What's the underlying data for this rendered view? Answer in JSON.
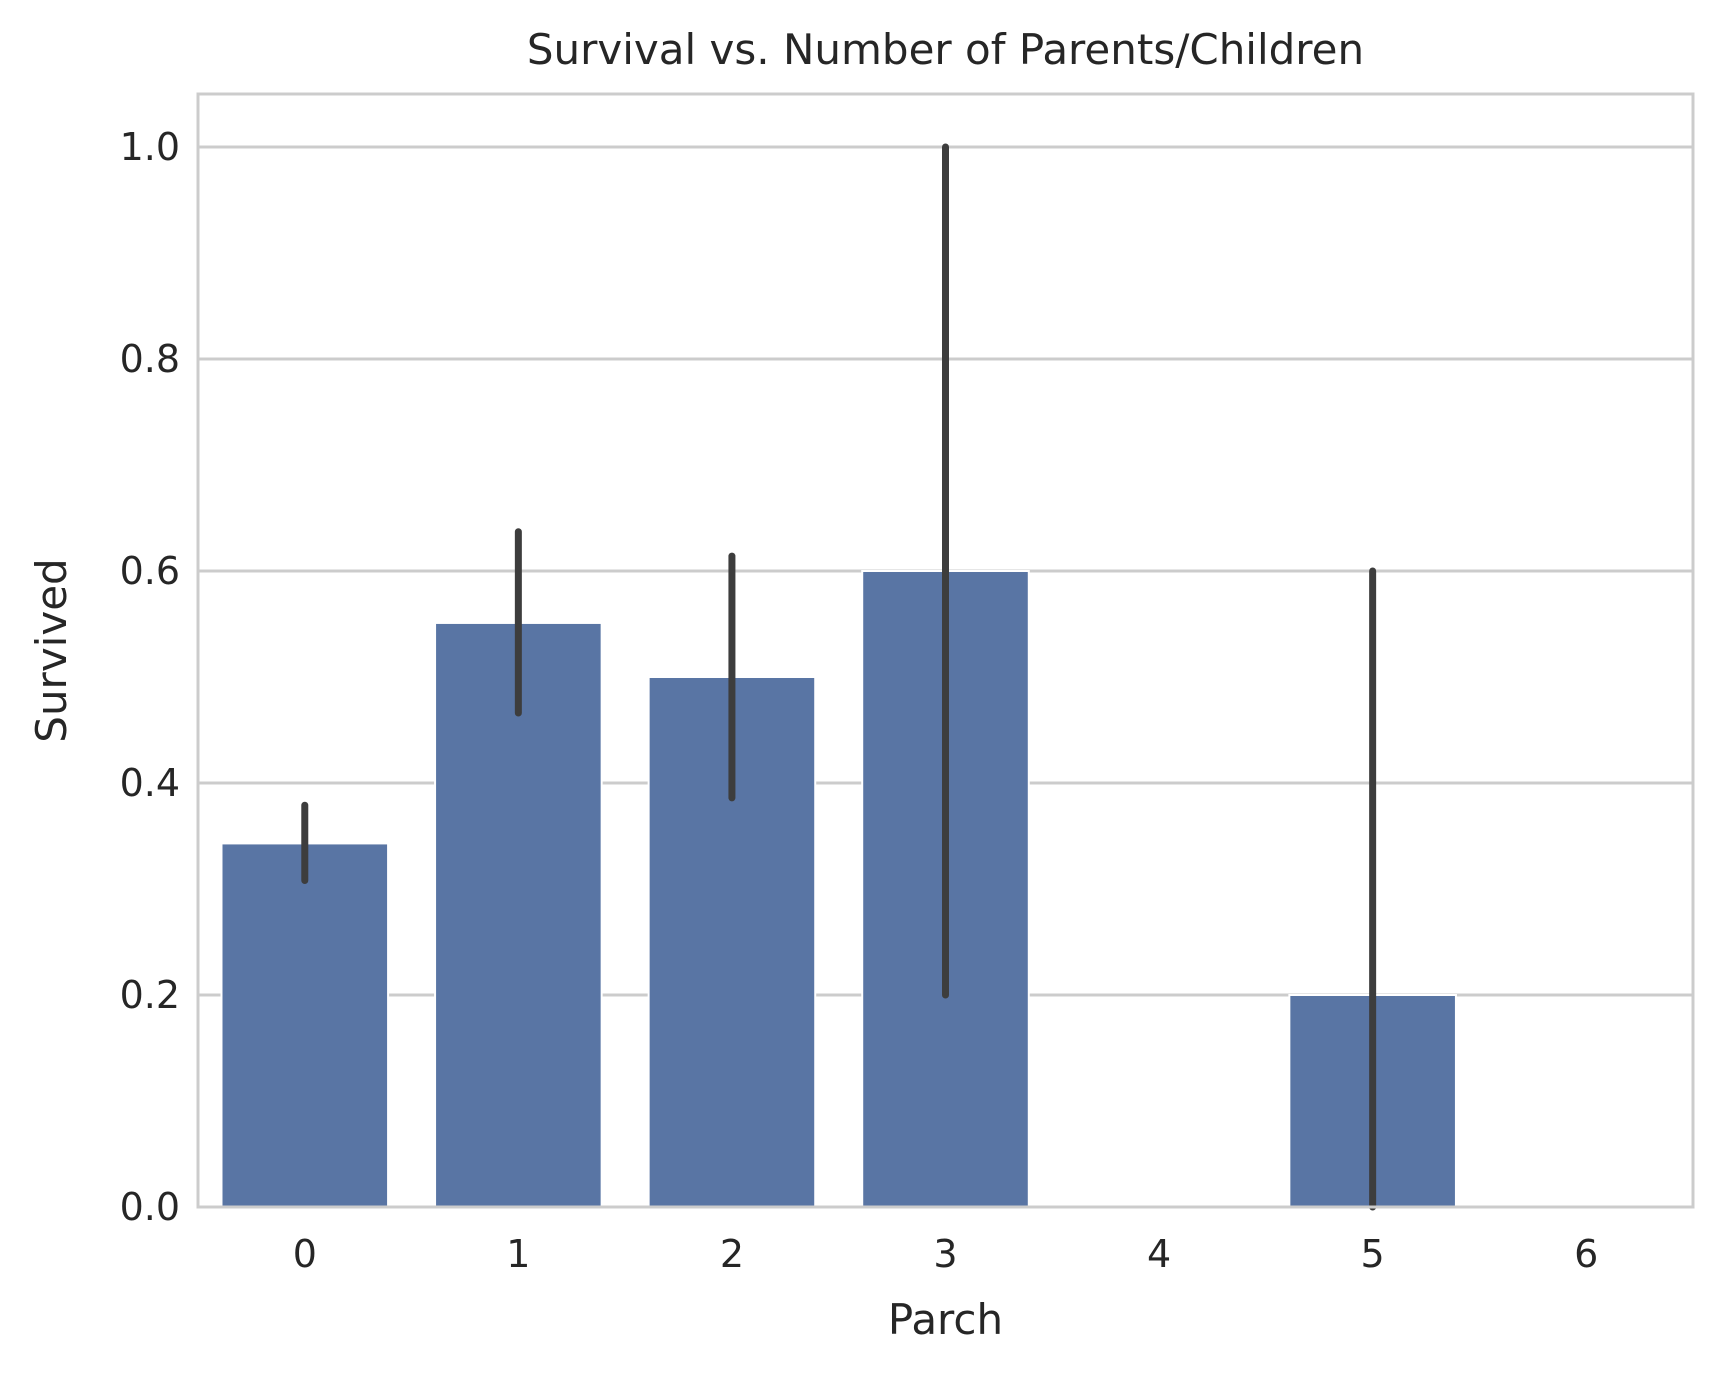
{
  "chart_data": {
    "type": "bar",
    "title": "Survival vs. Number of Parents/Children",
    "xlabel": "Parch",
    "ylabel": "Survived",
    "categories": [
      "0",
      "1",
      "2",
      "3",
      "4",
      "5",
      "6"
    ],
    "values": [
      0.343,
      0.551,
      0.5,
      0.6,
      0.0,
      0.2,
      0.0
    ],
    "error_bars": [
      [
        0.308,
        0.379
      ],
      [
        0.466,
        0.637
      ],
      [
        0.386,
        0.614
      ],
      [
        0.2,
        1.0
      ],
      [
        0.0,
        0.0
      ],
      [
        0.0,
        0.6
      ],
      [
        0.0,
        0.0
      ]
    ],
    "ylim": [
      0,
      1.05
    ],
    "yticks": [
      "0.0",
      "0.2",
      "0.4",
      "0.6",
      "0.8",
      "1.0"
    ],
    "ytick_values": [
      0,
      0.2,
      0.4,
      0.6,
      0.8,
      1.0
    ],
    "grid": true,
    "colors": {
      "bar": "#5975a4",
      "error_bar": "#3d3d3d",
      "grid": "#cccccc",
      "frame": "#cccccc",
      "text": "#262626"
    }
  }
}
